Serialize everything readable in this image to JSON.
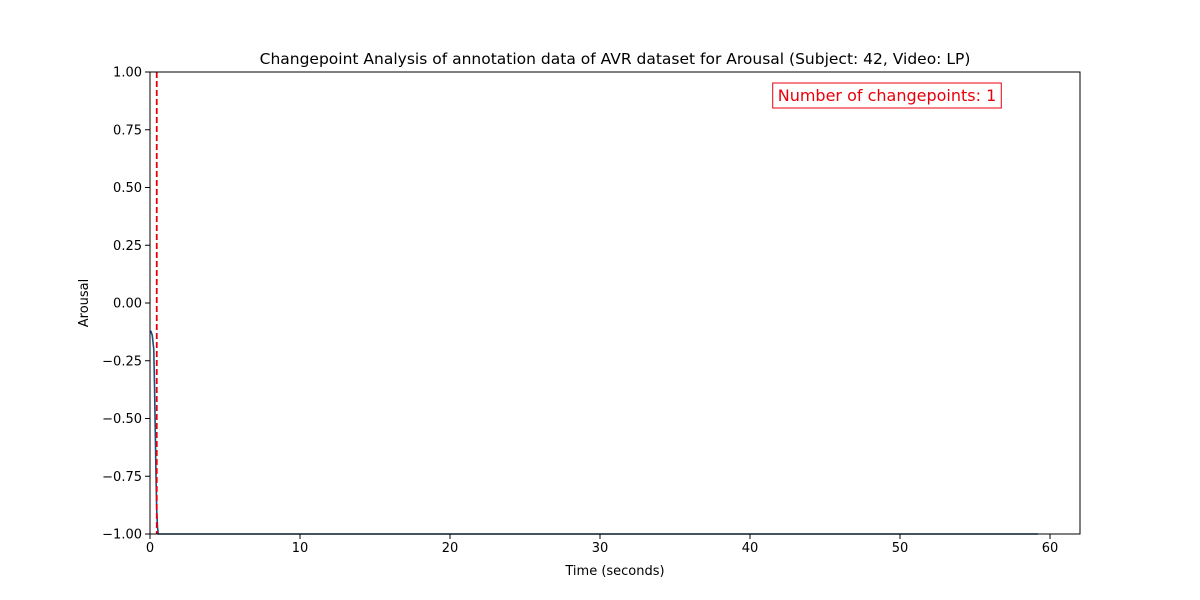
{
  "chart_data": {
    "type": "line",
    "title": "Changepoint Analysis of annotation data of AVR dataset for Arousal (Subject: 42, Video: LP)",
    "xlabel": "Time (seconds)",
    "ylabel": "Arousal",
    "xlim": [
      0,
      62
    ],
    "ylim": [
      -1.0,
      1.0
    ],
    "x_ticks": [
      0,
      10,
      20,
      30,
      40,
      50,
      60
    ],
    "x_tick_labels": [
      "0",
      "10",
      "20",
      "30",
      "40",
      "50",
      "60"
    ],
    "y_ticks": [
      -1.0,
      -0.75,
      -0.5,
      -0.25,
      0.0,
      0.25,
      0.5,
      0.75,
      1.0
    ],
    "y_tick_labels": [
      "−1.00",
      "−0.75",
      "−0.50",
      "−0.25",
      "0.00",
      "0.25",
      "0.50",
      "0.75",
      "1.00"
    ],
    "grid": false,
    "series": [
      {
        "color": "#1f4e79",
        "x": [
          0.05,
          0.15,
          0.25,
          0.3,
          0.35,
          0.4,
          0.45,
          0.5,
          0.55,
          0.6,
          1.0,
          5,
          10,
          20,
          30,
          40,
          50,
          59.2
        ],
        "y": [
          -0.12,
          -0.14,
          -0.2,
          -0.35,
          -0.55,
          -0.75,
          -0.9,
          -0.97,
          -1.0,
          -1.0,
          -1.0,
          -1.0,
          -1.0,
          -1.0,
          -1.0,
          -1.0,
          -1.0,
          -1.0
        ]
      }
    ],
    "changepoints": [
      0.45
    ],
    "changepoint_color": "#e8000b",
    "annotation": {
      "text": "Number of changepoints: 1",
      "color": "#e8000b",
      "placement": "top-right"
    }
  }
}
